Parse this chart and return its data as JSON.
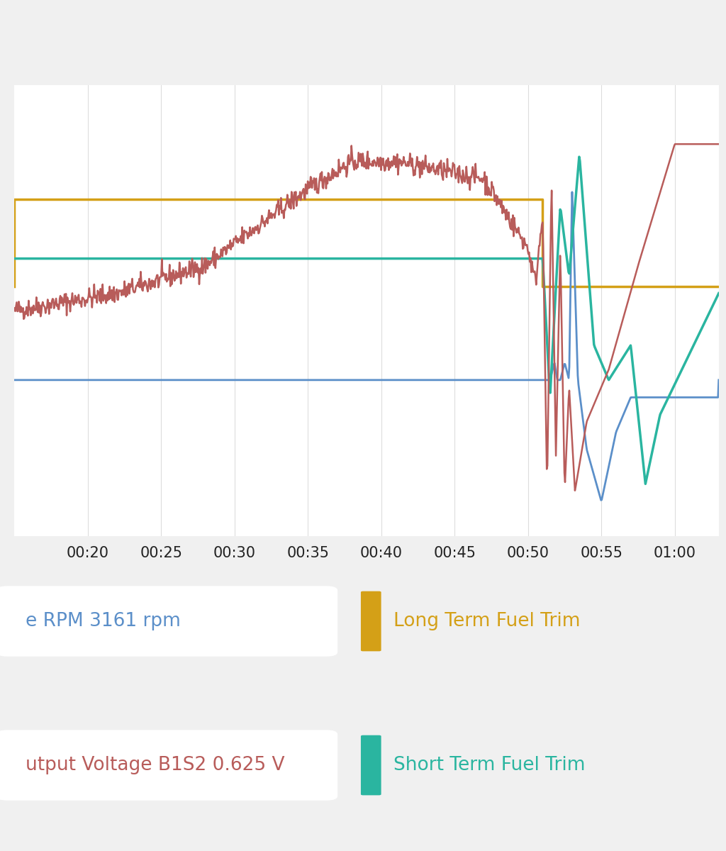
{
  "bg_top_color": "#e8e8e8",
  "bg_color": "#f0f0f0",
  "chart_bg": "#ffffff",
  "grid_color": "#dddddd",
  "x_ticks": [
    20,
    25,
    30,
    35,
    40,
    45,
    50,
    55,
    60
  ],
  "x_tick_labels": [
    "00:20",
    "00:25",
    "00:30",
    "00:35",
    "00:40",
    "00:45",
    "00:50",
    "00:55",
    "01:00"
  ],
  "colors": {
    "red": "#b85c5a",
    "blue": "#5b8fc9",
    "gold": "#d4a017",
    "teal": "#2ab5a0"
  },
  "label_rpm": "e RPM 3161 rpm",
  "label_o2": "utput Voltage B1S2 0.625 V",
  "label_ltft": "Long Term Fuel Trim",
  "label_stft": "Short Term Fuel Trim",
  "panel_bg": "#e8e8e8"
}
